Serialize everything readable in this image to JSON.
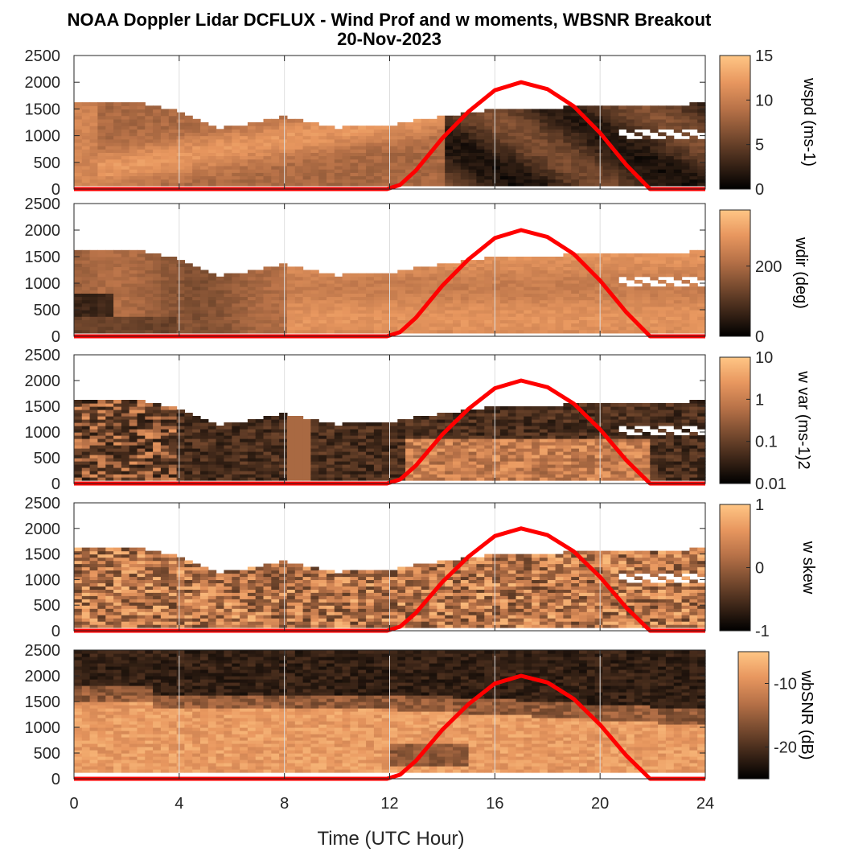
{
  "figure": {
    "title_line1": "NOAA Doppler Lidar DCFLUX - Wind Prof and w moments, WBSNR Breakout",
    "title_line2": "20-Nov-2023",
    "xlabel": "Time (UTC Hour)"
  },
  "colors": {
    "colormap": [
      "#000000",
      "#3d2618",
      "#7a4c30",
      "#b87248",
      "#e8975f",
      "#ffc685"
    ],
    "sun_curve": "#ff0000",
    "axes": "#262626",
    "grid": "#dedede"
  },
  "chart_data": [
    {
      "type": "heatmap",
      "variable": "wspd",
      "colorbar_label": "wspd (ms-1)",
      "colorbar_ticks": [
        "15",
        "10",
        "5",
        "0"
      ],
      "colorbar_range": [
        0,
        15
      ],
      "x": [
        0,
        4,
        8,
        12,
        16,
        20,
        24
      ],
      "xlim": [
        0,
        24
      ],
      "ylim": [
        0,
        2500
      ],
      "yticks": [
        "2500",
        "2000",
        "1500",
        "1000",
        "500",
        "0"
      ],
      "data_top_m": [
        [
          0.2,
          1600
        ],
        [
          2,
          1650
        ],
        [
          4,
          1450
        ],
        [
          5.5,
          1150
        ],
        [
          7,
          1250
        ],
        [
          8,
          1350
        ],
        [
          10,
          1150
        ],
        [
          12,
          1200
        ],
        [
          14.5,
          1400
        ],
        [
          16,
          1500
        ],
        [
          20,
          1550
        ],
        [
          24,
          1600
        ]
      ],
      "gap": {
        "x_start": 20.7,
        "y": [
          950,
          1150
        ]
      }
    },
    {
      "type": "heatmap",
      "variable": "wdir",
      "colorbar_label": "wdir (deg)",
      "colorbar_ticks": [
        "200",
        "0"
      ],
      "colorbar_range": [
        0,
        360
      ],
      "x": [
        0,
        4,
        8,
        12,
        16,
        20,
        24
      ],
      "xlim": [
        0,
        24
      ],
      "ylim": [
        0,
        2500
      ],
      "yticks": [
        "2500",
        "2000",
        "1500",
        "1000",
        "500",
        "0"
      ],
      "data_top_m": [
        [
          0.2,
          1600
        ],
        [
          2,
          1650
        ],
        [
          4,
          1450
        ],
        [
          5.5,
          1150
        ],
        [
          7,
          1250
        ],
        [
          8,
          1350
        ],
        [
          10,
          1150
        ],
        [
          12,
          1200
        ],
        [
          14.5,
          1400
        ],
        [
          16,
          1500
        ],
        [
          20,
          1550
        ],
        [
          24,
          1600
        ]
      ],
      "gap": {
        "x_start": 20.7,
        "y": [
          950,
          1150
        ]
      }
    },
    {
      "type": "heatmap",
      "variable": "w var",
      "colorbar_label": "w var (ms-1)2",
      "colorbar_ticks": [
        "10",
        "1",
        "0.1",
        "0.01"
      ],
      "colorbar_scale": "log",
      "colorbar_range": [
        0.01,
        10
      ],
      "x": [
        0,
        4,
        8,
        12,
        16,
        20,
        24
      ],
      "xlim": [
        0,
        24
      ],
      "ylim": [
        0,
        2500
      ],
      "yticks": [
        "2500",
        "2000",
        "1500",
        "1000",
        "500",
        "0"
      ],
      "data_top_m": [
        [
          0.2,
          1600
        ],
        [
          2,
          1650
        ],
        [
          4,
          1450
        ],
        [
          5.5,
          1150
        ],
        [
          7,
          1250
        ],
        [
          8,
          1350
        ],
        [
          10,
          1150
        ],
        [
          12,
          1200
        ],
        [
          14.5,
          1400
        ],
        [
          16,
          1500
        ],
        [
          20,
          1550
        ],
        [
          24,
          1600
        ]
      ],
      "gap": {
        "x_start": 20.7,
        "y": [
          950,
          1150
        ]
      }
    },
    {
      "type": "heatmap",
      "variable": "w skew",
      "colorbar_label": "w skew",
      "colorbar_ticks": [
        "1",
        "0",
        "-1"
      ],
      "colorbar_range": [
        -1,
        1
      ],
      "x": [
        0,
        4,
        8,
        12,
        16,
        20,
        24
      ],
      "xlim": [
        0,
        24
      ],
      "ylim": [
        0,
        2500
      ],
      "yticks": [
        "2500",
        "2000",
        "1500",
        "1000",
        "500",
        "0"
      ],
      "data_top_m": [
        [
          0.2,
          1600
        ],
        [
          2,
          1650
        ],
        [
          4,
          1450
        ],
        [
          5.5,
          1150
        ],
        [
          7,
          1250
        ],
        [
          8,
          1350
        ],
        [
          10,
          1150
        ],
        [
          12,
          1200
        ],
        [
          14.5,
          1400
        ],
        [
          16,
          1500
        ],
        [
          20,
          1550
        ],
        [
          24,
          1600
        ]
      ],
      "gap": {
        "x_start": 20.7,
        "y": [
          950,
          1150
        ]
      }
    },
    {
      "type": "heatmap",
      "variable": "wbSNR",
      "colorbar_label": "wbSNR (dB)",
      "colorbar_ticks": [
        "-10",
        "-20"
      ],
      "colorbar_range": [
        -25,
        -5
      ],
      "x": [
        0,
        4,
        8,
        12,
        16,
        20,
        24
      ],
      "xlim": [
        0,
        24
      ],
      "ylim": [
        0,
        2500
      ],
      "yticks": [
        "2500",
        "2000",
        "1500",
        "1000",
        "500",
        "0"
      ]
    }
  ],
  "sun_curve": {
    "label": "solar elevation overlay",
    "x": [
      0,
      11.9,
      12.4,
      13,
      14,
      15,
      16,
      17,
      18,
      19,
      20,
      21,
      21.9,
      24
    ],
    "y": [
      0,
      0,
      80,
      350,
      950,
      1450,
      1850,
      2000,
      1870,
      1550,
      1050,
      450,
      0,
      0
    ]
  }
}
